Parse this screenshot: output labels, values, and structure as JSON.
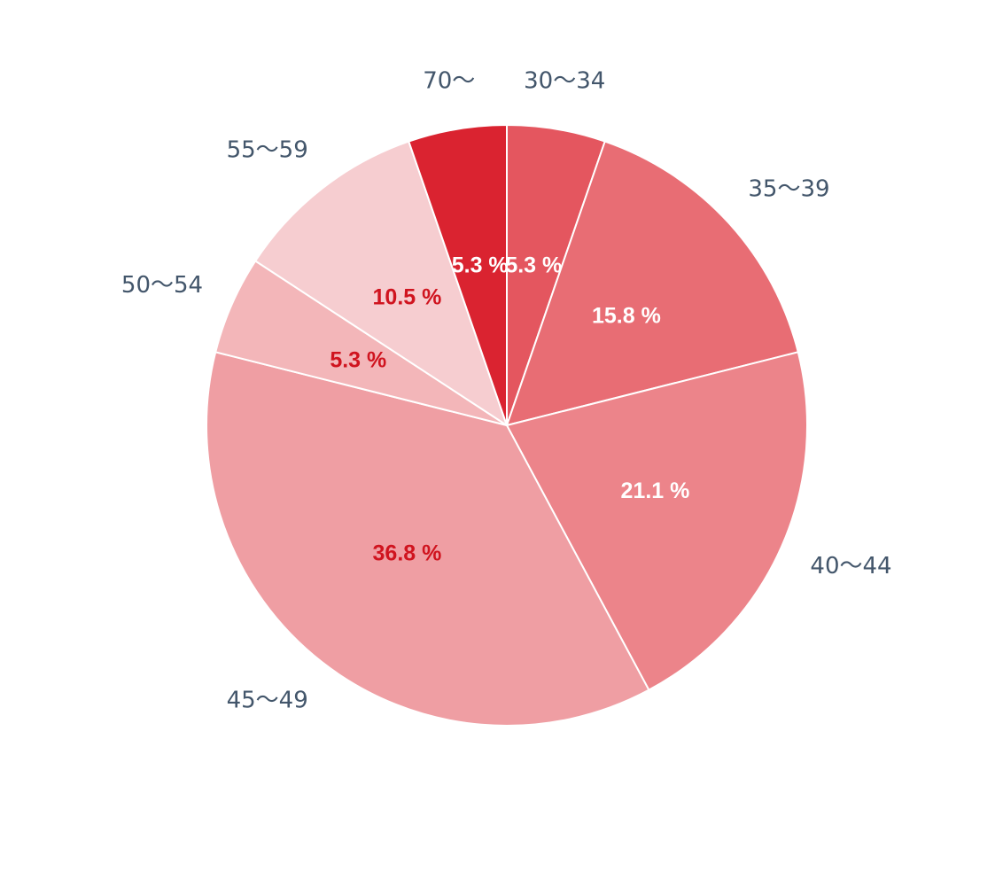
{
  "chart_data": {
    "type": "pie",
    "start_angle_deg": 0,
    "direction": "clockwise",
    "slices": [
      {
        "category": "30〜34",
        "value": 5.3,
        "label": "5.3 %",
        "color": "#e4565f",
        "label_color": "#ffffff"
      },
      {
        "category": "35〜39",
        "value": 15.8,
        "label": "15.8 %",
        "color": "#e86d74",
        "label_color": "#ffffff"
      },
      {
        "category": "40〜44",
        "value": 21.1,
        "label": "21.1 %",
        "color": "#ec848a",
        "label_color": "#ffffff"
      },
      {
        "category": "45〜49",
        "value": 36.8,
        "label": "36.8 %",
        "color": "#ef9ea3",
        "label_color": "#d0141f"
      },
      {
        "category": "50〜54",
        "value": 5.3,
        "label": "5.3 %",
        "color": "#f3b6b9",
        "label_color": "#d0141f"
      },
      {
        "category": "55〜59",
        "value": 10.5,
        "label": "10.5 %",
        "color": "#f6cdd0",
        "label_color": "#d0141f"
      },
      {
        "category": "70〜",
        "value": 5.3,
        "label": "5.3 %",
        "color": "#da2330",
        "label_color": "#ffffff"
      }
    ]
  }
}
